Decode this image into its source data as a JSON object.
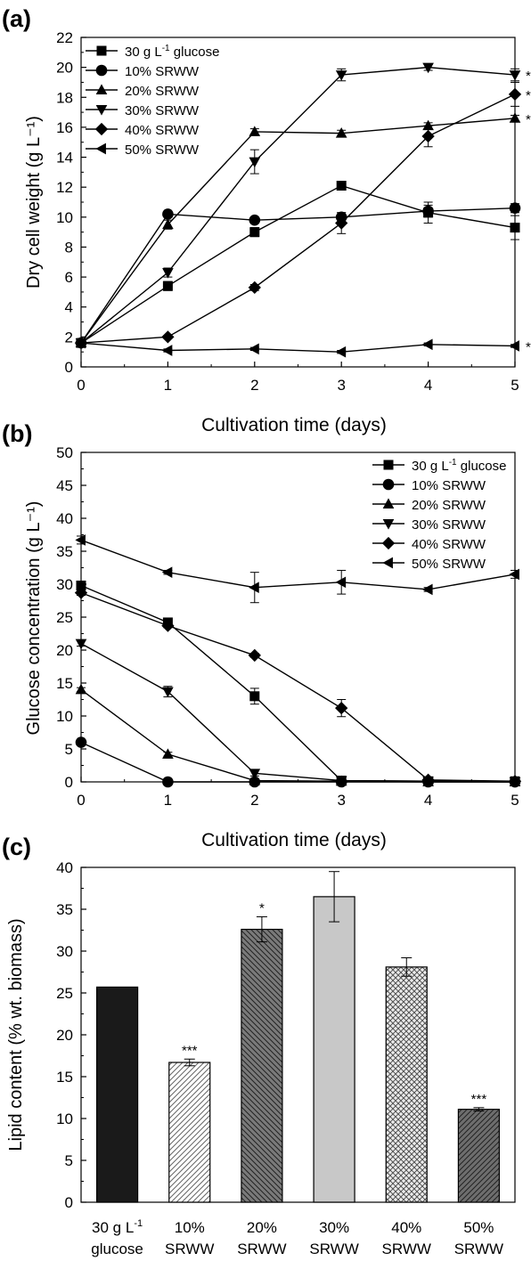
{
  "chart_data": [
    {
      "panel_label": "(a)",
      "type": "line",
      "xlabel": "Cultivation time (days)",
      "ylabel": "Dry cell weight (g L⁻¹)",
      "xlim": [
        0,
        5
      ],
      "ylim": [
        0,
        22
      ],
      "xticks": [
        0,
        1,
        2,
        3,
        4,
        5
      ],
      "yticks": [
        0,
        2,
        4,
        6,
        8,
        10,
        12,
        14,
        16,
        18,
        20,
        22
      ],
      "legend_position": "top-left",
      "grid": false,
      "x": [
        0,
        1,
        2,
        3,
        4,
        5
      ],
      "series": [
        {
          "name": "30 g L⁻¹ glucose",
          "marker": "square",
          "values": [
            1.6,
            5.4,
            9.0,
            12.1,
            10.3,
            9.3
          ],
          "errors": [
            0,
            0.3,
            0.3,
            0.2,
            0.7,
            0.8
          ]
        },
        {
          "name": "10% SRWW",
          "marker": "circle",
          "values": [
            1.6,
            10.2,
            9.8,
            10.0,
            10.4,
            10.6
          ],
          "errors": [
            0,
            0.2,
            0.2,
            0.3,
            0.4,
            0.3
          ]
        },
        {
          "name": "20% SRWW",
          "marker": "triangle-up",
          "values": [
            1.6,
            9.5,
            15.7,
            15.6,
            16.1,
            16.6
          ],
          "errors": [
            0,
            0.3,
            0.2,
            0.2,
            0.2,
            0.2
          ]
        },
        {
          "name": "30% SRWW",
          "marker": "triangle-down",
          "values": [
            1.6,
            6.3,
            13.7,
            19.5,
            20.0,
            19.5
          ],
          "errors": [
            0,
            0.3,
            0.8,
            0.4,
            0.2,
            0.4
          ]
        },
        {
          "name": "40% SRWW",
          "marker": "diamond",
          "values": [
            1.6,
            2.0,
            5.3,
            9.6,
            15.4,
            18.2
          ],
          "errors": [
            0,
            0.1,
            0.2,
            0.7,
            0.7,
            0.8
          ]
        },
        {
          "name": "50% SRWW",
          "marker": "triangle-left",
          "values": [
            1.6,
            1.1,
            1.2,
            1.0,
            1.5,
            1.4
          ],
          "errors": [
            0,
            0.1,
            0.1,
            0.1,
            0.1,
            0.1
          ]
        }
      ],
      "significance": [
        {
          "series": "30% SRWW",
          "label": "***"
        },
        {
          "series": "40% SRWW",
          "label": "***"
        },
        {
          "series": "20% SRWW",
          "label": "**"
        },
        {
          "series": "50% SRWW",
          "label": "**"
        }
      ]
    },
    {
      "panel_label": "(b)",
      "type": "line",
      "xlabel": "Cultivation time (days)",
      "ylabel": "Glucose concentration (g L⁻¹)",
      "xlim": [
        0,
        5
      ],
      "ylim": [
        0,
        50
      ],
      "xticks": [
        0,
        1,
        2,
        3,
        4,
        5
      ],
      "yticks": [
        0,
        5,
        10,
        15,
        20,
        25,
        30,
        35,
        40,
        45,
        50
      ],
      "legend_position": "top-right",
      "grid": false,
      "x": [
        0,
        1,
        2,
        3,
        4,
        5
      ],
      "series": [
        {
          "name": "30 g L⁻¹ glucose",
          "marker": "square",
          "values": [
            29.8,
            24.2,
            13.0,
            0.2,
            0.1,
            0.1
          ],
          "errors": [
            0.5,
            0.4,
            1.2,
            0.2,
            0,
            0
          ]
        },
        {
          "name": "10% SRWW",
          "marker": "circle",
          "values": [
            6.0,
            0.0,
            0.0,
            0.0,
            0.0,
            0.0
          ],
          "errors": [
            0.3,
            0,
            0,
            0,
            0,
            0
          ]
        },
        {
          "name": "20% SRWW",
          "marker": "triangle-up",
          "values": [
            14.0,
            4.2,
            0.2,
            0.1,
            0.0,
            0.0
          ],
          "errors": [
            0.3,
            0.3,
            0,
            0,
            0,
            0
          ]
        },
        {
          "name": "30% SRWW",
          "marker": "triangle-down",
          "values": [
            21.0,
            13.7,
            1.3,
            0.2,
            0.1,
            0.0
          ],
          "errors": [
            0.4,
            0.8,
            0.4,
            0.1,
            0,
            0
          ]
        },
        {
          "name": "40% SRWW",
          "marker": "diamond",
          "values": [
            28.7,
            23.7,
            19.2,
            11.2,
            0.3,
            0.1
          ],
          "errors": [
            0.4,
            0.3,
            0.3,
            1.3,
            0.1,
            0
          ]
        },
        {
          "name": "50% SRWW",
          "marker": "triangle-left",
          "values": [
            36.7,
            31.8,
            29.5,
            30.3,
            29.2,
            31.5
          ],
          "errors": [
            0.6,
            0.3,
            2.3,
            1.8,
            0.3,
            0.6
          ]
        }
      ]
    },
    {
      "panel_label": "(c)",
      "type": "bar",
      "ylabel": "Lipid content (% wt. biomass)",
      "ylim": [
        0,
        40
      ],
      "yticks": [
        0,
        5,
        10,
        15,
        20,
        25,
        30,
        35,
        40
      ],
      "grid": false,
      "categories": [
        [
          "30 g L⁻¹",
          "glucose"
        ],
        [
          "10%",
          "SRWW"
        ],
        [
          "20%",
          "SRWW"
        ],
        [
          "30%",
          "SRWW"
        ],
        [
          "40%",
          "SRWW"
        ],
        [
          "50%",
          "SRWW"
        ]
      ],
      "values": [
        25.7,
        16.7,
        32.6,
        36.5,
        28.1,
        11.1
      ],
      "errors": [
        0,
        0.4,
        1.5,
        3.0,
        1.1,
        0.2
      ],
      "significance": [
        "",
        "***",
        "*",
        "",
        "",
        "***"
      ],
      "fills": [
        {
          "pattern": "solid",
          "color": "#1a1a1a"
        },
        {
          "pattern": "hatch-ne",
          "color": "#ffffff",
          "line": "#666666"
        },
        {
          "pattern": "hatch-nw",
          "color": "#7a7a7a",
          "line": "#222222"
        },
        {
          "pattern": "solid",
          "color": "#c8c8c8"
        },
        {
          "pattern": "crosshatch",
          "color": "#ececec",
          "line": "#555555"
        },
        {
          "pattern": "hatch-ne",
          "color": "#6e6e6e",
          "line": "#222222"
        }
      ]
    }
  ]
}
